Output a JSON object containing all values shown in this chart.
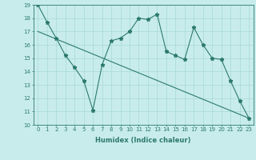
{
  "xlabel": "Humidex (Indice chaleur)",
  "bg_color": "#c8ecec",
  "line_color": "#2d7a6e",
  "grid_color": "#a8d8d8",
  "font_color": "#2d7a6e",
  "xlim": [
    -0.5,
    23.5
  ],
  "ylim": [
    10,
    19
  ],
  "yticks": [
    10,
    11,
    12,
    13,
    14,
    15,
    16,
    17,
    18,
    19
  ],
  "xticks": [
    0,
    1,
    2,
    3,
    4,
    5,
    6,
    7,
    8,
    9,
    10,
    11,
    12,
    13,
    14,
    15,
    16,
    17,
    18,
    19,
    20,
    21,
    22,
    23
  ],
  "line1_x": [
    0,
    1,
    2,
    3,
    4,
    5,
    6,
    7,
    8,
    9,
    10,
    11,
    12,
    13,
    14,
    15,
    16,
    17,
    18,
    19,
    20,
    21,
    22,
    23
  ],
  "line1_y": [
    19,
    17.7,
    16.5,
    15.2,
    14.3,
    13.3,
    11.1,
    14.5,
    16.3,
    16.5,
    17.0,
    18.0,
    17.9,
    18.3,
    15.5,
    15.2,
    14.9,
    17.3,
    16.0,
    15.0,
    14.9,
    13.3,
    11.8,
    10.5
  ],
  "line2_x": [
    0,
    23
  ],
  "line2_y": [
    17.0,
    10.5
  ],
  "marker": "*",
  "marker_size": 3.5,
  "line_width": 0.8,
  "tick_fontsize": 5,
  "xlabel_fontsize": 6,
  "xlabel_fontweight": "bold"
}
